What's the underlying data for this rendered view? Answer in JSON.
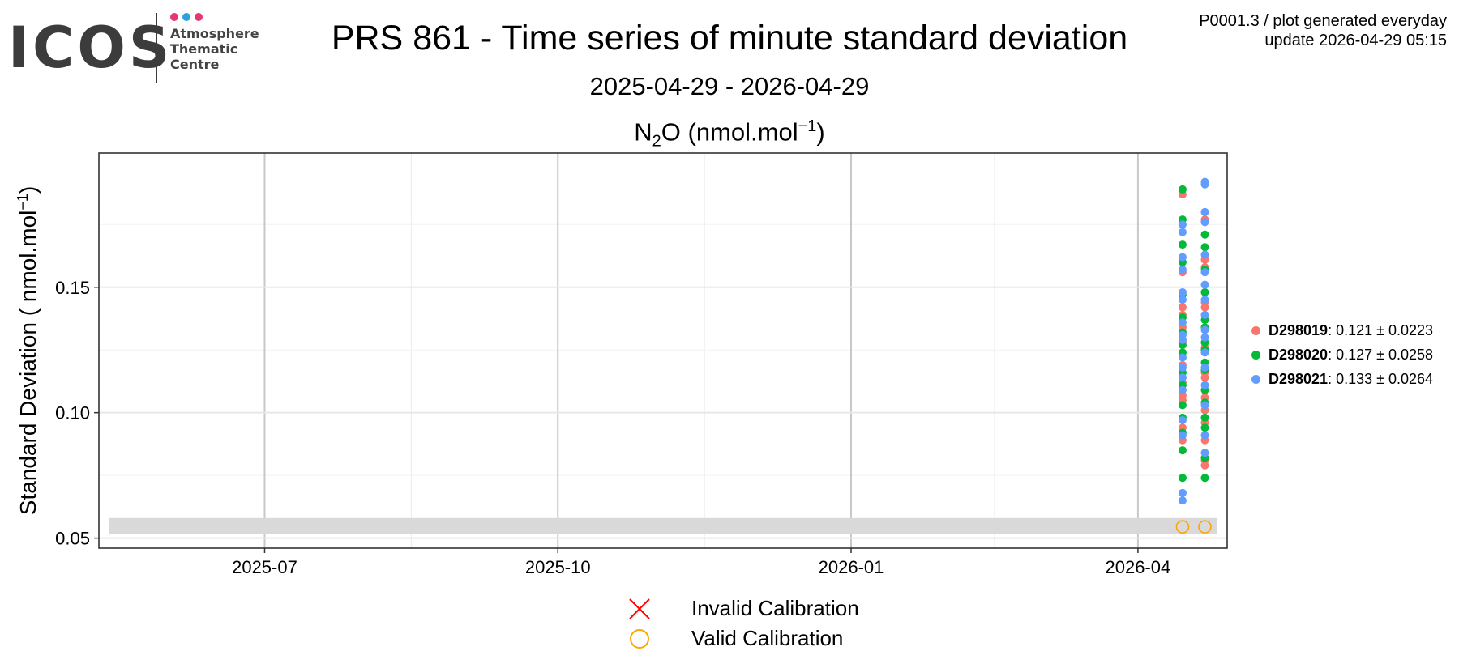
{
  "logo": {
    "text": "ICOS",
    "subtitle_lines": [
      "Atmosphere",
      "Thematic",
      "Centre"
    ],
    "dot_colors": [
      "#e6386e",
      "#2aa1e3",
      "#e6386e"
    ],
    "text_color": "#3c3c3c"
  },
  "header": {
    "title": "PRS 861 - Time series of minute standard deviation",
    "date_range": "2025-04-29 - 2026-04-29",
    "corner_line1": "P0001.3 / plot generated everyday",
    "corner_line2": "update  2026-04-29 05:15"
  },
  "panel_title": {
    "species": "N",
    "sub": "2",
    "species_end": "O",
    "unit_pre": " (nmol.mol",
    "sup": "−1",
    "unit_post": ")"
  },
  "chart_data": {
    "type": "scatter",
    "xlabel": "",
    "ylabel": "Standard Deviation ( nmol.mol",
    "ylabel_sup": "−1",
    "ylabel_end": ")",
    "xlim": [
      "2025-05-10",
      "2026-04-29"
    ],
    "ylim": [
      0.046,
      0.2035
    ],
    "x_ticks": [
      "2025-07-01",
      "2025-10-01",
      "2026-01-01",
      "2026-04-01"
    ],
    "x_tick_labels": [
      "2025-07",
      "2025-10",
      "2026-01",
      "2026-04"
    ],
    "y_ticks": [
      0.05,
      0.1,
      0.15
    ],
    "y_tick_labels": [
      "0.05",
      "0.10",
      "0.15"
    ],
    "grid": true,
    "legend_position": "right",
    "reference_band": {
      "ymin": 0.0518,
      "ymax": 0.058,
      "color": "#d9d9d9"
    },
    "series": [
      {
        "name": "D298019",
        "stats": ": 0.121 ± 0.0223",
        "color": "#f8766d",
        "points": [
          [
            "2026-04-15",
            0.187
          ],
          [
            "2026-04-15",
            0.156
          ],
          [
            "2026-04-15",
            0.142
          ],
          [
            "2026-04-15",
            0.139
          ],
          [
            "2026-04-15",
            0.134
          ],
          [
            "2026-04-15",
            0.128
          ],
          [
            "2026-04-15",
            0.119
          ],
          [
            "2026-04-15",
            0.112
          ],
          [
            "2026-04-15",
            0.107
          ],
          [
            "2026-04-15",
            0.105
          ],
          [
            "2026-04-15",
            0.094
          ],
          [
            "2026-04-15",
            0.089
          ],
          [
            "2026-04-22",
            0.177
          ],
          [
            "2026-04-22",
            0.176
          ],
          [
            "2026-04-22",
            0.161
          ],
          [
            "2026-04-22",
            0.158
          ],
          [
            "2026-04-22",
            0.144
          ],
          [
            "2026-04-22",
            0.142
          ],
          [
            "2026-04-22",
            0.126
          ],
          [
            "2026-04-22",
            0.116
          ],
          [
            "2026-04-22",
            0.114
          ],
          [
            "2026-04-22",
            0.106
          ],
          [
            "2026-04-22",
            0.101
          ],
          [
            "2026-04-22",
            0.096
          ],
          [
            "2026-04-22",
            0.089
          ],
          [
            "2026-04-22",
            0.081
          ],
          [
            "2026-04-22",
            0.079
          ]
        ]
      },
      {
        "name": "D298020",
        "stats": ": 0.127 ± 0.0258",
        "color": "#00ba38",
        "points": [
          [
            "2026-04-15",
            0.189
          ],
          [
            "2026-04-15",
            0.177
          ],
          [
            "2026-04-15",
            0.167
          ],
          [
            "2026-04-15",
            0.16
          ],
          [
            "2026-04-15",
            0.147
          ],
          [
            "2026-04-15",
            0.138
          ],
          [
            "2026-04-15",
            0.132
          ],
          [
            "2026-04-15",
            0.127
          ],
          [
            "2026-04-15",
            0.124
          ],
          [
            "2026-04-15",
            0.116
          ],
          [
            "2026-04-15",
            0.111
          ],
          [
            "2026-04-15",
            0.103
          ],
          [
            "2026-04-15",
            0.098
          ],
          [
            "2026-04-15",
            0.092
          ],
          [
            "2026-04-15",
            0.085
          ],
          [
            "2026-04-15",
            0.074
          ],
          [
            "2026-04-22",
            0.171
          ],
          [
            "2026-04-22",
            0.166
          ],
          [
            "2026-04-22",
            0.157
          ],
          [
            "2026-04-22",
            0.148
          ],
          [
            "2026-04-22",
            0.137
          ],
          [
            "2026-04-22",
            0.134
          ],
          [
            "2026-04-22",
            0.128
          ],
          [
            "2026-04-22",
            0.125
          ],
          [
            "2026-04-22",
            0.12
          ],
          [
            "2026-04-22",
            0.117
          ],
          [
            "2026-04-22",
            0.109
          ],
          [
            "2026-04-22",
            0.104
          ],
          [
            "2026-04-22",
            0.098
          ],
          [
            "2026-04-22",
            0.094
          ],
          [
            "2026-04-22",
            0.082
          ],
          [
            "2026-04-22",
            0.074
          ]
        ]
      },
      {
        "name": "D298021",
        "stats": ": 0.133 ± 0.0264",
        "color": "#619cff",
        "points": [
          [
            "2026-04-15",
            0.175
          ],
          [
            "2026-04-15",
            0.172
          ],
          [
            "2026-04-15",
            0.162
          ],
          [
            "2026-04-15",
            0.157
          ],
          [
            "2026-04-15",
            0.148
          ],
          [
            "2026-04-15",
            0.145
          ],
          [
            "2026-04-15",
            0.136
          ],
          [
            "2026-04-15",
            0.131
          ],
          [
            "2026-04-15",
            0.129
          ],
          [
            "2026-04-15",
            0.122
          ],
          [
            "2026-04-15",
            0.118
          ],
          [
            "2026-04-15",
            0.114
          ],
          [
            "2026-04-15",
            0.109
          ],
          [
            "2026-04-15",
            0.097
          ],
          [
            "2026-04-15",
            0.091
          ],
          [
            "2026-04-15",
            0.068
          ],
          [
            "2026-04-15",
            0.065
          ],
          [
            "2026-04-22",
            0.192
          ],
          [
            "2026-04-22",
            0.191
          ],
          [
            "2026-04-22",
            0.18
          ],
          [
            "2026-04-22",
            0.176
          ],
          [
            "2026-04-22",
            0.163
          ],
          [
            "2026-04-22",
            0.156
          ],
          [
            "2026-04-22",
            0.151
          ],
          [
            "2026-04-22",
            0.145
          ],
          [
            "2026-04-22",
            0.139
          ],
          [
            "2026-04-22",
            0.133
          ],
          [
            "2026-04-22",
            0.13
          ],
          [
            "2026-04-22",
            0.124
          ],
          [
            "2026-04-22",
            0.118
          ],
          [
            "2026-04-22",
            0.111
          ],
          [
            "2026-04-22",
            0.103
          ],
          [
            "2026-04-22",
            0.091
          ],
          [
            "2026-04-22",
            0.084
          ]
        ]
      }
    ],
    "calibration_markers": [
      {
        "x": "2026-04-15",
        "y": 0.0545,
        "status": "valid"
      },
      {
        "x": "2026-04-22",
        "y": 0.0545,
        "status": "valid"
      }
    ]
  },
  "calibration_legend": {
    "invalid_label": "Invalid Calibration",
    "invalid_color": "#ff0000",
    "valid_label": "Valid Calibration",
    "valid_color": "#ffa500"
  }
}
